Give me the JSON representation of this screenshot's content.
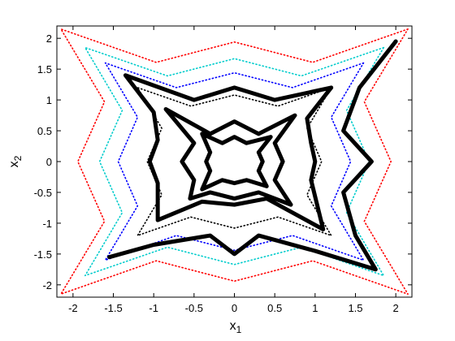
{
  "chart_data": {
    "type": "line",
    "xlabel": {
      "text": "x",
      "subscript": "1"
    },
    "ylabel": {
      "text": "x",
      "subscript": "2"
    },
    "xlim": [
      -2.2,
      2.2
    ],
    "ylim": [
      -2.2,
      2.2
    ],
    "xticks": [
      -2,
      -1.5,
      -1,
      -0.5,
      0,
      0.5,
      1,
      1.5,
      2
    ],
    "yticks": [
      -2,
      -1.5,
      -1,
      -0.5,
      0,
      0.5,
      1,
      1.5,
      2
    ],
    "series": [
      {
        "color": "#ff0000",
        "style": "dotted",
        "x": [
          2.15,
          0.97,
          0,
          -0.97,
          -2.15,
          -1.61,
          -1.94,
          -1.61,
          -2.15,
          -0.97,
          0,
          0.97,
          2.15,
          1.61,
          1.94,
          1.61,
          2.15
        ],
        "y": [
          2.15,
          1.61,
          1.94,
          1.61,
          2.15,
          0.97,
          0,
          -0.97,
          -2.15,
          -1.61,
          -1.94,
          -1.61,
          -2.15,
          -0.97,
          0,
          0.97,
          2.15
        ]
      },
      {
        "color": "#00cccc",
        "style": "dotted",
        "x": [
          1.85,
          0.83,
          0,
          -0.83,
          -1.85,
          -1.39,
          -1.67,
          -1.39,
          -1.85,
          -0.83,
          0,
          0.83,
          1.85,
          1.39,
          1.67,
          1.39,
          1.85
        ],
        "y": [
          1.85,
          1.39,
          1.67,
          1.39,
          1.85,
          0.83,
          0,
          -0.83,
          -1.85,
          -1.39,
          -1.67,
          -1.39,
          -1.85,
          -0.83,
          0,
          0.83,
          1.85
        ]
      },
      {
        "color": "#0000ff",
        "style": "dotted",
        "x": [
          1.6,
          0.72,
          0,
          -0.72,
          -1.6,
          -1.2,
          -1.44,
          -1.2,
          -1.6,
          -0.72,
          0,
          0.72,
          1.6,
          1.2,
          1.44,
          1.2,
          1.6
        ],
        "y": [
          1.6,
          1.2,
          1.44,
          1.2,
          1.6,
          0.72,
          0,
          -0.72,
          -1.6,
          -1.2,
          -1.44,
          -1.2,
          -1.6,
          -0.72,
          0,
          0.72,
          1.6
        ]
      },
      {
        "color": "#000000",
        "style": "dotted",
        "x": [
          1.2,
          0.54,
          0,
          -0.54,
          -1.2,
          -0.9,
          -1.08,
          -0.9,
          -1.2,
          -0.54,
          0,
          0.54,
          1.2,
          0.9,
          1.08,
          0.9,
          1.2
        ],
        "y": [
          1.2,
          0.9,
          1.08,
          0.9,
          1.2,
          0.54,
          0,
          -0.54,
          -1.2,
          -0.9,
          -1.08,
          -0.9,
          -1.2,
          -0.54,
          0,
          0.54,
          1.2
        ]
      },
      {
        "color": "#000000",
        "style": "solid",
        "x": [
          2.0,
          1.55,
          1.35,
          1.7,
          1.35,
          1.5,
          1.75,
          1.0,
          0.3,
          0,
          -0.3,
          -1.0,
          -1.55,
          null,
          -1.35,
          -0.5,
          0,
          0.5,
          1.2,
          0.9,
          0.95,
          1.0,
          0.95,
          1.1,
          0.4,
          0,
          -0.4,
          -0.95,
          -0.95,
          -1.05,
          -0.95,
          -1.0,
          -1.35,
          null,
          -0.85,
          -0.3,
          0,
          0.3,
          0.75,
          0.5,
          0.6,
          0.5,
          0.7,
          0.3,
          0,
          -0.3,
          -0.55,
          -0.5,
          -0.65,
          -0.5,
          -0.85,
          null,
          -0.4,
          -0.15,
          0,
          0.15,
          0.45,
          0.3,
          0.35,
          0.3,
          0.4,
          0.15,
          0,
          -0.15,
          -0.4,
          -0.3,
          -0.35,
          -0.3,
          -0.4
        ],
        "y": [
          1.95,
          1.2,
          0.5,
          0,
          -0.5,
          -1.2,
          -1.75,
          -1.45,
          -1.2,
          -1.5,
          -1.2,
          -1.35,
          -1.55,
          null,
          1.4,
          1.0,
          1.2,
          1.0,
          1.2,
          0.7,
          0.3,
          0,
          -0.3,
          -1.1,
          -0.6,
          -0.7,
          -0.65,
          -0.95,
          -0.35,
          0,
          0.35,
          0.8,
          1.4,
          null,
          0.85,
          0.45,
          0.65,
          0.45,
          0.75,
          0.3,
          0,
          -0.3,
          -0.7,
          -0.5,
          -0.6,
          -0.5,
          -0.6,
          -0.3,
          0,
          0.3,
          0.85,
          null,
          0.45,
          0.3,
          0.4,
          0.3,
          0.4,
          0.15,
          0,
          -0.15,
          -0.4,
          -0.3,
          -0.35,
          -0.3,
          -0.45,
          -0.15,
          0,
          0.15,
          0.45
        ]
      }
    ]
  }
}
